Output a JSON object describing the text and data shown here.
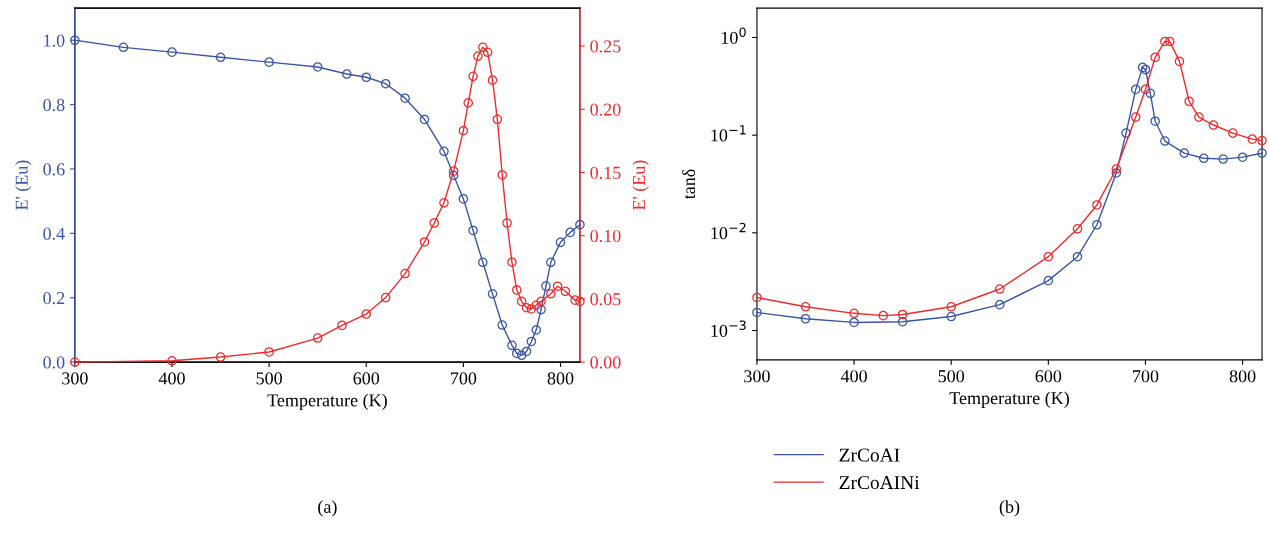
{
  "chart_data": [
    {
      "type": "line",
      "xlabel": "Temperature (K)",
      "ylabel": "E' (Eu)",
      "y2label": "E' (Eu)",
      "marker": "circle",
      "line_style": "solid",
      "grid": false,
      "legend": false,
      "xlim": [
        300,
        820
      ],
      "xticks": [
        300,
        400,
        500,
        600,
        700,
        800
      ],
      "ylim": [
        0,
        1.1
      ],
      "yticks": [
        {
          "value": 0,
          "label": "0.0"
        },
        {
          "value": 0.2,
          "label": "0.2"
        },
        {
          "value": 0.4,
          "label": "0.4"
        },
        {
          "value": 0.6,
          "label": "0.6"
        },
        {
          "value": 0.8,
          "label": "0.8"
        },
        {
          "value": 1.0,
          "label": "1.0"
        }
      ],
      "y2lim": [
        0,
        0.28
      ],
      "y2ticks": [
        {
          "value": 0,
          "label": "0.00"
        },
        {
          "value": 0.05,
          "label": "0.05"
        },
        {
          "value": 0.1,
          "label": "0.10"
        },
        {
          "value": 0.15,
          "label": "0.15"
        },
        {
          "value": 0.2,
          "label": "0.20"
        },
        {
          "value": 0.25,
          "label": "0.25"
        }
      ],
      "annotations": [
        "(a)"
      ],
      "series": [
        {
          "color": "#3a55a8",
          "axis": "y",
          "x": [
            300,
            350,
            400,
            450,
            500,
            550,
            580,
            600,
            620,
            640,
            660,
            680,
            690,
            700,
            710,
            720,
            730,
            740,
            750,
            755,
            760,
            765,
            770,
            775,
            780,
            785,
            790,
            800,
            810,
            820
          ],
          "values": [
            1.0,
            0.978,
            0.963,
            0.947,
            0.932,
            0.917,
            0.895,
            0.885,
            0.865,
            0.82,
            0.754,
            0.655,
            0.58,
            0.507,
            0.409,
            0.31,
            0.212,
            0.115,
            0.052,
            0.027,
            0.021,
            0.033,
            0.064,
            0.1,
            0.163,
            0.236,
            0.31,
            0.372,
            0.403,
            0.427
          ]
        },
        {
          "color": "#ee2a2a",
          "axis": "y2",
          "x": [
            300,
            400,
            450,
            500,
            550,
            575,
            600,
            620,
            640,
            660,
            670,
            680,
            690,
            700,
            705,
            710,
            715,
            720,
            725,
            730,
            735,
            740,
            745,
            750,
            755,
            760,
            765,
            770,
            775,
            780,
            790,
            797,
            805,
            815,
            820
          ],
          "values": [
            0,
            0.001,
            0.004,
            0.008,
            0.019,
            0.029,
            0.038,
            0.051,
            0.07,
            0.095,
            0.11,
            0.126,
            0.151,
            0.183,
            0.205,
            0.226,
            0.242,
            0.249,
            0.245,
            0.223,
            0.192,
            0.148,
            0.11,
            0.079,
            0.057,
            0.048,
            0.043,
            0.042,
            0.045,
            0.048,
            0.054,
            0.06,
            0.056,
            0.049,
            0.048
          ]
        }
      ]
    },
    {
      "type": "line",
      "xlabel": "Temperature (K)",
      "ylabel": "tanδ",
      "marker": "circle",
      "line_style": "solid",
      "grid": false,
      "legend": "bottom left",
      "log": "y",
      "xlim": [
        300,
        820
      ],
      "xticks": [
        300,
        400,
        500,
        600,
        700,
        800
      ],
      "ylim": [
        0.0005,
        2
      ],
      "yticks": [
        {
          "value": 0.001,
          "label": "10$^{−3}$"
        },
        {
          "value": 0.01,
          "label": "10$^{−2}$"
        },
        {
          "value": 0.1,
          "label": "10$^{−1}$"
        },
        {
          "value": 1,
          "label": "10$^{0}$"
        }
      ],
      "annotations": [
        "(b)"
      ],
      "series": [
        {
          "name": "ZrCoAI",
          "color": "#3a55a8",
          "x": [
            300,
            350,
            400,
            450,
            500,
            550,
            600,
            630,
            650,
            670,
            680,
            690,
            697,
            700,
            705,
            710,
            720,
            740,
            760,
            780,
            800,
            820
          ],
          "values": [
            0.00153,
            0.00132,
            0.00121,
            0.00123,
            0.00139,
            0.00184,
            0.00324,
            0.0057,
            0.0121,
            0.041,
            0.105,
            0.294,
            0.494,
            0.47,
            0.268,
            0.139,
            0.087,
            0.0655,
            0.058,
            0.0569,
            0.0595,
            0.0655
          ]
        },
        {
          "name": "ZrCoAINi",
          "color": "#ee2a2a",
          "x": [
            300,
            350,
            400,
            430,
            450,
            500,
            550,
            600,
            630,
            650,
            670,
            690,
            700,
            710,
            720,
            725,
            735,
            745,
            755,
            770,
            790,
            810,
            820
          ],
          "values": [
            0.00218,
            0.00175,
            0.0015,
            0.00142,
            0.00146,
            0.00175,
            0.00266,
            0.0057,
            0.011,
            0.0193,
            0.045,
            0.153,
            0.294,
            0.625,
            0.91,
            0.91,
            0.569,
            0.222,
            0.153,
            0.127,
            0.105,
            0.091,
            0.088
          ]
        }
      ]
    }
  ]
}
